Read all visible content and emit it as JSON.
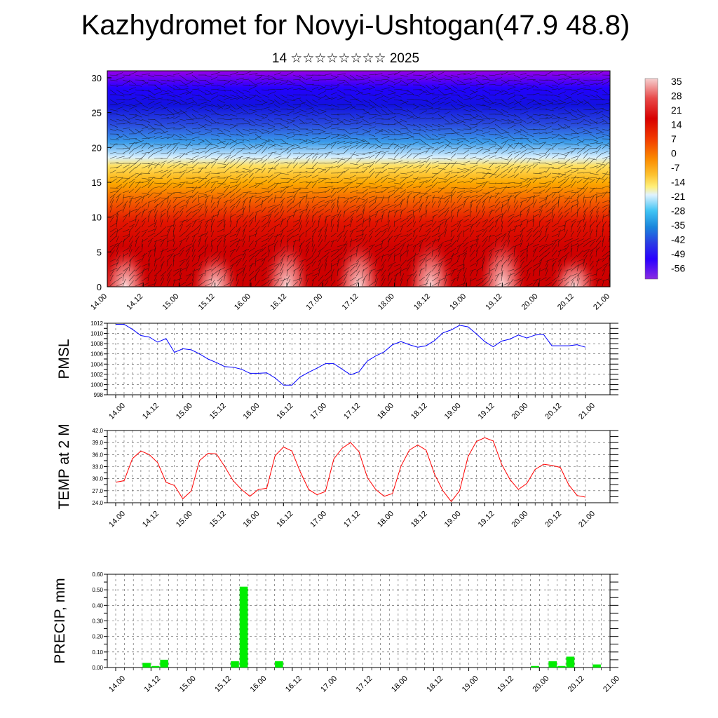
{
  "header": {
    "title": "Kazhydromet for Novyi-Ushtogan(47.9 48.8)",
    "subtitle": "14 ☆☆☆☆☆☆☆☆ 2025"
  },
  "colors": {
    "pmsl_line": "#0000ff",
    "temp_line": "#ff0000",
    "precip_bar": "#00ee00",
    "grid": "#555555"
  },
  "chart_data": [
    {
      "type": "heatmap",
      "title": "",
      "xlabel": "",
      "ylabel": "",
      "x_tick_labels": [
        "14.00",
        "14.12",
        "15.00",
        "15.12",
        "16.00",
        "16.12",
        "17.00",
        "17.12",
        "18.00",
        "18.12",
        "19.00",
        "19.12",
        "20.00",
        "20.12",
        "21.00"
      ],
      "y_ticks": [
        0,
        5,
        10,
        15,
        20,
        25,
        30
      ],
      "ylim": [
        0,
        31
      ],
      "colorbar_labels": [
        "35",
        "28",
        "21",
        "14",
        "7",
        "0",
        "-7",
        "-14",
        "-21",
        "-28",
        "-35",
        "-42",
        "-49",
        "-56"
      ],
      "colorbar_colors": [
        "#f4c4c4",
        "#e63a3a",
        "#d80000",
        "#f03000",
        "#f86a00",
        "#fc9d00",
        "#fdd23a",
        "#e6f0ff",
        "#3cc2f2",
        "#1a90e0",
        "#2d3ce6",
        "#2b00ff",
        "#3a00e6",
        "#8a2be2"
      ],
      "surface_temp_peaks": [
        {
          "time": "14.06",
          "value": 35
        },
        {
          "time": "15.12",
          "value": 34
        },
        {
          "time": "16.12",
          "value": 37
        },
        {
          "time": "17.12",
          "value": 37
        },
        {
          "time": "18.12",
          "value": 37
        },
        {
          "time": "19.12",
          "value": 38
        },
        {
          "time": "20.12",
          "value": 33
        }
      ],
      "overlay": "wind barbs"
    },
    {
      "type": "line",
      "ylabel": "PMSL",
      "x_tick_labels": [
        "14.00",
        "14.12",
        "15.00",
        "15.12",
        "16.00",
        "16.12",
        "17.00",
        "17.12",
        "18.00",
        "18.12",
        "19.00",
        "19.12",
        "20.00",
        "20.12",
        "21.00"
      ],
      "y_ticks": [
        998,
        1000,
        1002,
        1004,
        1006,
        1008,
        1010,
        1012
      ],
      "ylim": [
        998,
        1012
      ],
      "series": [
        {
          "values": [
            1011.8,
            1011.8,
            1010.8,
            1009.6,
            1009.3,
            1008.3,
            1009.0,
            1006.3,
            1007.0,
            1006.8,
            1006.0,
            1005.0,
            1004.3,
            1003.5,
            1003.4,
            1003.0,
            1002.2,
            1002.2,
            1002.3,
            1001.3,
            999.9,
            999.9,
            1001.5,
            1002.4,
            1003.2,
            1004.1,
            1004.1,
            1003.0,
            1001.9,
            1002.5,
            1004.6,
            1005.6,
            1006.4,
            1007.8,
            1008.4,
            1007.8,
            1007.3,
            1007.6,
            1008.6,
            1010.1,
            1010.7,
            1011.6,
            1011.3,
            1009.9,
            1008.4,
            1007.4,
            1008.5,
            1008.9,
            1009.7,
            1009.1,
            1009.7,
            1009.8,
            1007.6,
            1007.6,
            1007.6,
            1007.8,
            1007.3
          ]
        }
      ]
    },
    {
      "type": "line",
      "ylabel": "TEMP at 2 M",
      "x_tick_labels": [
        "14.00",
        "14.12",
        "15.00",
        "15.12",
        "16.00",
        "16.12",
        "17.00",
        "17.12",
        "18.00",
        "18.12",
        "19.00",
        "19.12",
        "20.00",
        "20.12",
        "21.00"
      ],
      "y_ticks": [
        "24.0",
        "27.0",
        "30.0",
        "33.0",
        "36.0",
        "39.0",
        "42.0"
      ],
      "ylim": [
        24,
        42
      ],
      "series": [
        {
          "values": [
            29.1,
            29.5,
            35.0,
            36.9,
            36.0,
            34.0,
            29.1,
            28.3,
            25.0,
            26.9,
            34.5,
            36.3,
            36.2,
            33.0,
            29.5,
            27.3,
            25.6,
            27.3,
            27.6,
            35.7,
            37.9,
            36.9,
            31.7,
            27.3,
            26.0,
            26.8,
            34.9,
            37.6,
            39.0,
            36.7,
            30.3,
            27.3,
            25.6,
            26.3,
            33.1,
            37.1,
            38.4,
            37.1,
            31.2,
            27.0,
            24.3,
            27.0,
            35.5,
            39.3,
            40.2,
            39.4,
            33.6,
            29.8,
            27.3,
            28.8,
            32.3,
            33.6,
            33.3,
            32.8,
            28.5,
            25.8,
            25.4
          ]
        }
      ]
    },
    {
      "type": "bar",
      "ylabel": "PRECIP, mm",
      "x_tick_labels": [
        "14.00",
        "14.12",
        "15.00",
        "15.12",
        "16.00",
        "16.12",
        "17.00",
        "17.12",
        "18.00",
        "18.12",
        "19.00",
        "19.12",
        "20.00",
        "20.12",
        "21.00"
      ],
      "y_ticks": [
        "0.00",
        "0.10",
        "0.20",
        "0.30",
        "0.40",
        "0.50",
        "0.60"
      ],
      "ylim": [
        0,
        0.6
      ],
      "values": [
        0,
        0,
        0,
        0.03,
        0.01,
        0.05,
        0,
        0,
        0,
        0,
        0,
        0,
        0,
        0.04,
        0.52,
        0,
        0,
        0,
        0.04,
        0,
        0,
        0,
        0,
        0,
        0,
        0,
        0,
        0,
        0,
        0,
        0,
        0,
        0,
        0,
        0,
        0,
        0,
        0,
        0,
        0,
        0,
        0,
        0,
        0,
        0,
        0,
        0,
        0.01,
        0,
        0.04,
        0.01,
        0.07,
        0,
        0,
        0.02,
        0
      ]
    }
  ]
}
